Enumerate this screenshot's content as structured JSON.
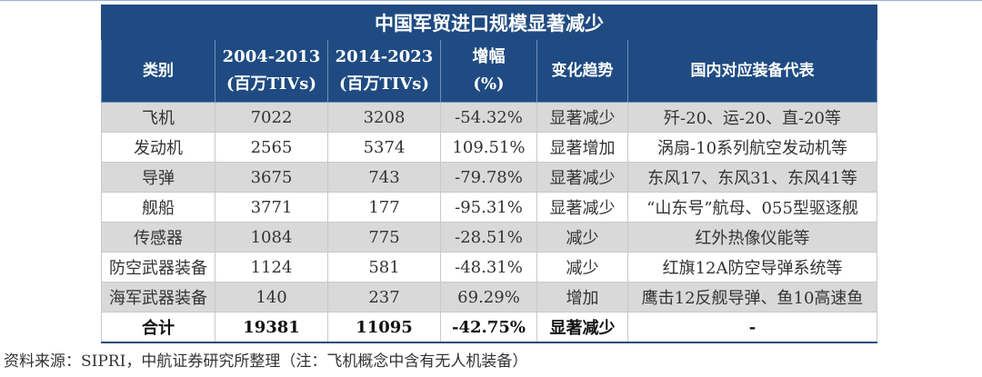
{
  "table": {
    "title": "中国军贸进口规模显著减少",
    "headers": [
      {
        "line1": "类别",
        "line2": ""
      },
      {
        "line1": "2004-2013",
        "line2": "(百万TIVs)"
      },
      {
        "line1": "2014-2023",
        "line2": "(百万TIVs)"
      },
      {
        "line1": "增幅",
        "line2": "(%)"
      },
      {
        "line1": "变化趋势",
        "line2": ""
      },
      {
        "line1": "国内对应装备代表",
        "line2": ""
      }
    ],
    "rows": [
      [
        "飞机",
        "7022",
        "3208",
        "-54.32%",
        "显著减少",
        "歼-20、运-20、直-20等"
      ],
      [
        "发动机",
        "2565",
        "5374",
        "109.51%",
        "显著增加",
        "涡扇-10系列航空发动机等"
      ],
      [
        "导弹",
        "3675",
        "743",
        "-79.78%",
        "显著减少",
        "东风17、东风31、东风41等"
      ],
      [
        "舰船",
        "3771",
        "177",
        "-95.31%",
        "显著减少",
        "“山东号”航母、055型驱逐舰"
      ],
      [
        "传感器",
        "1084",
        "775",
        "-28.51%",
        "减少",
        "红外热像仪能等"
      ],
      [
        "防空武器装备",
        "1124",
        "581",
        "-48.31%",
        "减少",
        "红旗12A防空导弹系统等"
      ],
      [
        "海军武器装备",
        "140",
        "237",
        "69.29%",
        "增加",
        "鹰击12反舰导弹、鱼10高速鱼"
      ],
      [
        "合计",
        "19381",
        "11095",
        "-42.75%",
        "显著减少",
        "-"
      ]
    ]
  },
  "source_note": "资料来源：SIPRI，中航证券研究所整理（注：飞机概念中含有无人机装备）",
  "colors": {
    "header_bg": "#1f4b82",
    "shade_row": "#d9d9d9"
  }
}
